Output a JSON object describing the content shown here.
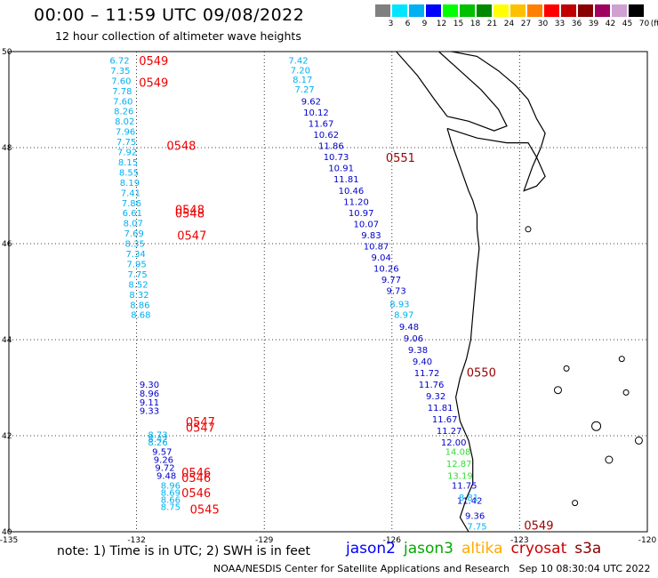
{
  "header": {
    "title": "00:00 – 11:59 UTC 09/08/2022",
    "subtitle": "12 hour collection of altimeter wave heights"
  },
  "colorbar": {
    "unit_label": "(ft)",
    "labels": [
      "3",
      "6",
      "9",
      "12",
      "15",
      "18",
      "21",
      "24",
      "27",
      "30",
      "33",
      "36",
      "39",
      "42",
      "45",
      "70"
    ],
    "colors": [
      "#808080",
      "#00e5ff",
      "#00b0f0",
      "#0000ff",
      "#00ff00",
      "#00c000",
      "#008800",
      "#ffff00",
      "#ffc000",
      "#ff8000",
      "#ff0000",
      "#c00000",
      "#880000",
      "#a00060",
      "#d0a0d0",
      "#000000"
    ]
  },
  "map_axes": {
    "lon_labels": [
      "-135",
      "-132",
      "-129",
      "-126",
      "-123",
      "-120"
    ],
    "lat_labels": [
      "50",
      "48",
      "46",
      "44",
      "42",
      "40"
    ]
  },
  "tracks": {
    "west_near": {
      "color": "#00b0f0",
      "values": [
        "6.72",
        "7.35",
        "7.60",
        "7.78",
        "7.60",
        "8.26",
        "8.02",
        "7.96",
        "7.75",
        "7.92",
        "8.15",
        "8.55",
        "8.19",
        "7.41",
        "7.86",
        "6.61",
        "8.07",
        "7.69",
        "8.35",
        "7.34",
        "7.95",
        "7.75",
        "8.52",
        "8.32",
        "8.86",
        "8.68"
      ]
    },
    "west_mid": {
      "color": "#0000cc",
      "values": [
        "9.30",
        "8.96",
        "9.11",
        "9.33"
      ]
    },
    "west_low": {
      "color": "#00b0f0",
      "values": [
        "8.73",
        "8.42",
        "8.26"
      ]
    },
    "west_low2": {
      "color": "#0000cc",
      "values": [
        "9.57",
        "9.26",
        "9.72",
        "9.48"
      ]
    },
    "west_tail": {
      "color": "#00b0f0",
      "values": [
        "8.96",
        "8.69",
        "8.66",
        "8.75"
      ]
    },
    "east_top": {
      "color": "#00b0f0",
      "values": [
        "7.42",
        "7.20",
        "8.17",
        "7.27"
      ]
    },
    "east_main": {
      "color": "#0000cc",
      "values": [
        "9.62",
        "10.12",
        "11.67",
        "10.62",
        "11.86",
        "10.73",
        "10.91",
        "11.81",
        "10.46",
        "11.20",
        "10.97",
        "10.07",
        "9.83",
        "10.87",
        "9.04",
        "10.26",
        "9.77",
        "9.73"
      ]
    },
    "east_mid": {
      "color": "#00b0f0",
      "values": [
        "8.93",
        "8.97"
      ]
    },
    "east_low": {
      "color": "#0000cc",
      "values": [
        "9.48",
        "9.06",
        "9.38",
        "9.40",
        "11.72",
        "11.76",
        "9.32",
        "11.81",
        "11.67",
        "11.27",
        "12.00"
      ]
    },
    "east_green": {
      "color": "#33dd33",
      "values": [
        "14.08",
        "12.87",
        "13.19"
      ]
    },
    "east_tail": {
      "color": "#0000cc",
      "values": [
        "11.75",
        "11.42",
        "9.36"
      ]
    },
    "east_tail_light": {
      "color": "#00b0f0",
      "values": [
        "8.81",
        "7.75"
      ]
    }
  },
  "times": {
    "west": [
      "0549",
      "0549",
      "0548",
      "0548",
      "0548",
      "0547",
      "0547",
      "0547",
      "0546",
      "0546",
      "0546",
      "0545"
    ],
    "east": [
      "0551",
      "0550",
      "0549"
    ],
    "colors": {
      "west": "#ee0000",
      "east": "#990000"
    }
  },
  "footer": {
    "note": "note: 1) Time is in UTC; 2) SWH is in feet",
    "legend": [
      {
        "label": "jason2",
        "color": "#0000ff"
      },
      {
        "label": "jason3",
        "color": "#00aa00"
      },
      {
        "label": "altika",
        "color": "#ffaa00"
      },
      {
        "label": "cryosat",
        "color": "#cc0000"
      },
      {
        "label": "s3a",
        "color": "#880000"
      }
    ],
    "credit": "NOAA/NESDIS Center for Satellite Applications and Research   Sep 10 08:30:04 UTC 2022"
  }
}
